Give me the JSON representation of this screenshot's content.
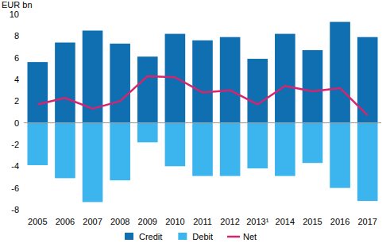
{
  "chart_data": {
    "type": "bar",
    "y_label": "EUR bn",
    "categories": [
      "2005",
      "2006",
      "2007",
      "2008",
      "2009",
      "2010",
      "2011",
      "2012",
      "2013¹",
      "2014",
      "2015",
      "2016",
      "2017"
    ],
    "series": [
      {
        "name": "Credit",
        "type": "bar",
        "color": "#0f6fb0",
        "values": [
          5.6,
          7.4,
          8.5,
          7.3,
          6.1,
          8.2,
          7.6,
          7.9,
          5.9,
          8.2,
          6.7,
          9.3,
          7.9
        ]
      },
      {
        "name": "Debit",
        "type": "bar",
        "color": "#3cb4ee",
        "values": [
          -3.9,
          -5.1,
          -7.3,
          -5.3,
          -1.8,
          -4.0,
          -4.9,
          -4.9,
          -4.2,
          -4.9,
          -3.7,
          -6.0,
          -7.2
        ]
      },
      {
        "name": "Net",
        "type": "line",
        "color": "#d6246e",
        "values": [
          1.7,
          2.3,
          1.3,
          2.0,
          4.3,
          4.2,
          2.8,
          3.0,
          1.7,
          3.4,
          2.9,
          3.2,
          0.7
        ]
      }
    ],
    "ylim": [
      -8,
      10
    ],
    "yticks": [
      -8,
      -6,
      -4,
      -2,
      0,
      2,
      4,
      6,
      8,
      10
    ],
    "grid": false,
    "legend": "bottom"
  }
}
